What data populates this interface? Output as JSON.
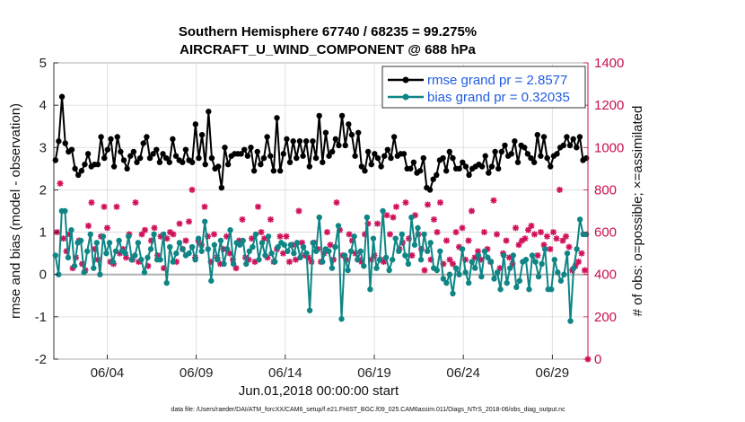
{
  "chart_data": {
    "type": "line",
    "title_line1": "Southern Hemisphere 67740 / 68235 = 99.275%",
    "title_line2": "AIRCRAFT_U_WIND_COMPONENT @ 688 hPa",
    "xlabel": "Jun.01,2018 00:00:00 start",
    "ylabel_left": "rmse and bias (model - observation)",
    "ylabel_right": "# of obs: o=possible; ×=assimilated",
    "footnote": "data file: /Users/raeder/DAI/ATM_forcXX/CAM6_setup/f.e21.FHIST_BGC.f09_025.CAM6assim.011/Diags_NTrS_2018-06/obs_diag_output.nc",
    "x_tick_labels": [
      "06/04",
      "06/09",
      "06/14",
      "06/19",
      "06/24",
      "06/29"
    ],
    "x_tick_values": [
      4,
      9,
      14,
      19,
      24,
      29
    ],
    "xlim": [
      1,
      31
    ],
    "ylim_left": [
      -2,
      5
    ],
    "y_ticks_left": [
      -2,
      -1,
      0,
      1,
      2,
      3,
      4,
      5
    ],
    "ylim_right": [
      0,
      1400
    ],
    "y_ticks_right": [
      0,
      200,
      400,
      600,
      800,
      1000,
      1200,
      1400
    ],
    "colors": {
      "rmse": "#000000",
      "bias": "#0f8585",
      "obs": "#d0105a",
      "right_axis": "#c8104e",
      "zero_line": "#b0b0b0",
      "legend_text": "#1f5ce0"
    },
    "legend": [
      {
        "label": "rmse grand pr = 2.8577",
        "series": "rmse"
      },
      {
        "label": "bias grand pr = 0.32035",
        "series": "bias"
      }
    ],
    "series": [
      {
        "name": "rmse",
        "values": [
          2.7,
          3.15,
          4.2,
          3.1,
          2.9,
          2.95,
          2.5,
          2.35,
          2.45,
          2.6,
          2.85,
          2.55,
          2.6,
          2.6,
          3.25,
          2.75,
          2.95,
          3.2,
          2.55,
          3.25,
          2.9,
          2.7,
          2.5,
          2.8,
          2.9,
          2.65,
          2.75,
          3.1,
          3.25,
          2.75,
          2.85,
          2.95,
          2.65,
          2.85,
          2.75,
          2.65,
          3.2,
          2.8,
          2.7,
          2.65,
          2.95,
          2.7,
          2.65,
          3.55,
          2.75,
          3.3,
          2.6,
          3.85,
          2.75,
          2.5,
          2.55,
          2.05,
          3.0,
          2.6,
          2.8,
          2.85,
          2.85,
          2.85,
          2.95,
          2.8,
          3.0,
          2.45,
          2.9,
          2.6,
          2.75,
          3.25,
          2.8,
          2.45,
          3.7,
          2.45,
          2.85,
          3.2,
          2.65,
          3.15,
          2.75,
          3.15,
          2.8,
          3.15,
          2.55,
          3.15,
          2.75,
          3.75,
          2.65,
          3.35,
          2.8,
          2.9,
          3.2,
          3.05,
          3.75,
          3.05,
          3.55,
          3.3,
          2.8,
          3.35,
          2.55,
          2.45,
          2.9,
          2.6,
          2.85,
          2.75,
          2.55,
          2.8,
          2.95,
          2.75,
          3.25,
          2.8,
          2.85,
          2.85,
          2.5,
          2.5,
          2.65,
          2.4,
          2.45,
          2.75,
          2.05,
          2.0,
          2.25,
          2.35,
          2.7,
          2.75,
          2.45,
          2.9,
          2.75,
          2.5,
          2.5,
          2.65,
          2.55,
          2.35,
          2.5,
          2.55,
          2.6,
          2.55,
          2.8,
          2.4,
          2.55,
          2.9,
          2.5,
          2.9,
          3.05,
          2.8,
          2.85,
          3.15,
          2.65,
          3.05,
          3.0,
          2.85,
          2.75,
          2.65,
          3.3,
          2.8,
          3.25,
          2.75,
          2.55,
          2.8,
          2.85,
          3.0,
          3.05,
          3.25,
          3.05,
          3.2,
          3.0,
          3.25,
          2.7,
          2.75
        ]
      },
      {
        "name": "bias",
        "values": [
          0.45,
          0.0,
          1.5,
          1.5,
          0.4,
          1.05,
          0.2,
          0.75,
          0.8,
          0.05,
          0.55,
          0.95,
          0.15,
          0.75,
          0.0,
          0.9,
          0.5,
          0.75,
          0.3,
          0.55,
          0.8,
          0.55,
          0.5,
          0.9,
          0.35,
          0.45,
          0.75,
          0.35,
          0.05,
          0.4,
          0.6,
          0.95,
          0.35,
          0.35,
          0.95,
          -0.2,
          0.65,
          0.3,
          0.5,
          0.75,
          0.6,
          0.45,
          0.5,
          0.65,
          0.35,
          0.85,
          0.55,
          1.25,
          0.6,
          -0.15,
          0.7,
          0.35,
          0.8,
          0.25,
          0.6,
          1.05,
          0.25,
          0.75,
          0.7,
          0.8,
          0.25,
          0.55,
          0.65,
          0.95,
          0.35,
          0.75,
          0.45,
          0.9,
          0.5,
          0.3,
          0.65,
          0.75,
          0.7,
          0.55,
          0.7,
          0.5,
          0.75,
          0.4,
          0.65,
          0.5,
          -0.85,
          0.75,
          0.55,
          1.35,
          0.3,
          0.6,
          0.55,
          0.15,
          0.65,
          1.15,
          -1.05,
          0.45,
          0.1,
          0.55,
          0.9,
          0.35,
          0.55,
          0.2,
          1.35,
          -0.35,
          0.85,
          0.15,
          0.35,
          1.5,
          0.4,
          0.1,
          0.35,
          0.85,
          0.55,
          0.95,
          0.45,
          0.25,
          1.35,
          0.7,
          1.1,
          0.35,
          0.95,
          0.55,
          0.75,
          0.15,
          0.1,
          0.55,
          -0.1,
          -0.2,
          0.0,
          -0.45,
          0.15,
          0.0,
          0.6,
          0.05,
          -0.2,
          0.3,
          0.15,
          0.45,
          -0.05,
          0.55,
          0.4,
          0.3,
          -0.1,
          0.05,
          -0.35,
          0.45,
          -0.2,
          0.15,
          0.45,
          -0.3,
          -0.15,
          0.3,
          0.35,
          -0.35,
          0.45,
          0.3,
          -0.05,
          0.25,
          0.6,
          -0.35,
          -0.35,
          0.35,
          0.05,
          -0.15,
          0.0,
          0.5,
          -1.1,
          0.15,
          0.6,
          1.3,
          0.95,
          0.95
        ]
      },
      {
        "name": "obs_assimilated",
        "values": [
          600,
          830,
          570,
          510,
          590,
          430,
          480,
          560,
          450,
          420,
          630,
          740,
          520,
          470,
          580,
          720,
          620,
          460,
          450,
          720,
          500,
          520,
          480,
          590,
          470,
          740,
          460,
          590,
          610,
          440,
          560,
          620,
          490,
          580,
          430,
          570,
          600,
          590,
          460,
          640,
          520,
          560,
          650,
          800,
          480,
          560,
          540,
          720,
          580,
          460,
          590,
          480,
          450,
          520,
          580,
          500,
          470,
          430,
          560,
          660,
          480,
          470,
          570,
          460,
          720,
          600,
          570,
          480,
          660,
          460,
          520,
          580,
          500,
          580,
          460,
          540,
          470,
          700,
          550,
          490,
          480,
          460,
          550,
          520,
          460,
          500,
          600,
          540,
          470,
          740,
          610,
          490,
          470,
          590,
          560,
          500,
          470,
          460,
          590,
          640,
          470,
          490,
          640,
          470,
          460,
          680,
          590,
          670,
          720,
          520,
          550,
          740,
          570,
          490,
          680,
          590,
          520,
          420,
          730,
          470,
          660,
          600,
          740,
          450,
          560,
          470,
          450,
          600,
          530,
          620,
          470,
          560,
          700,
          480,
          510,
          470,
          600,
          520,
          460,
          750,
          590,
          430,
          500,
          560,
          480,
          450,
          620,
          540,
          560,
          570,
          610,
          630,
          590,
          490,
          600,
          540,
          580,
          520,
          600,
          570,
          800,
          560,
          580,
          530,
          420,
          440,
          460,
          500,
          420,
          0
        ]
      }
    ]
  }
}
